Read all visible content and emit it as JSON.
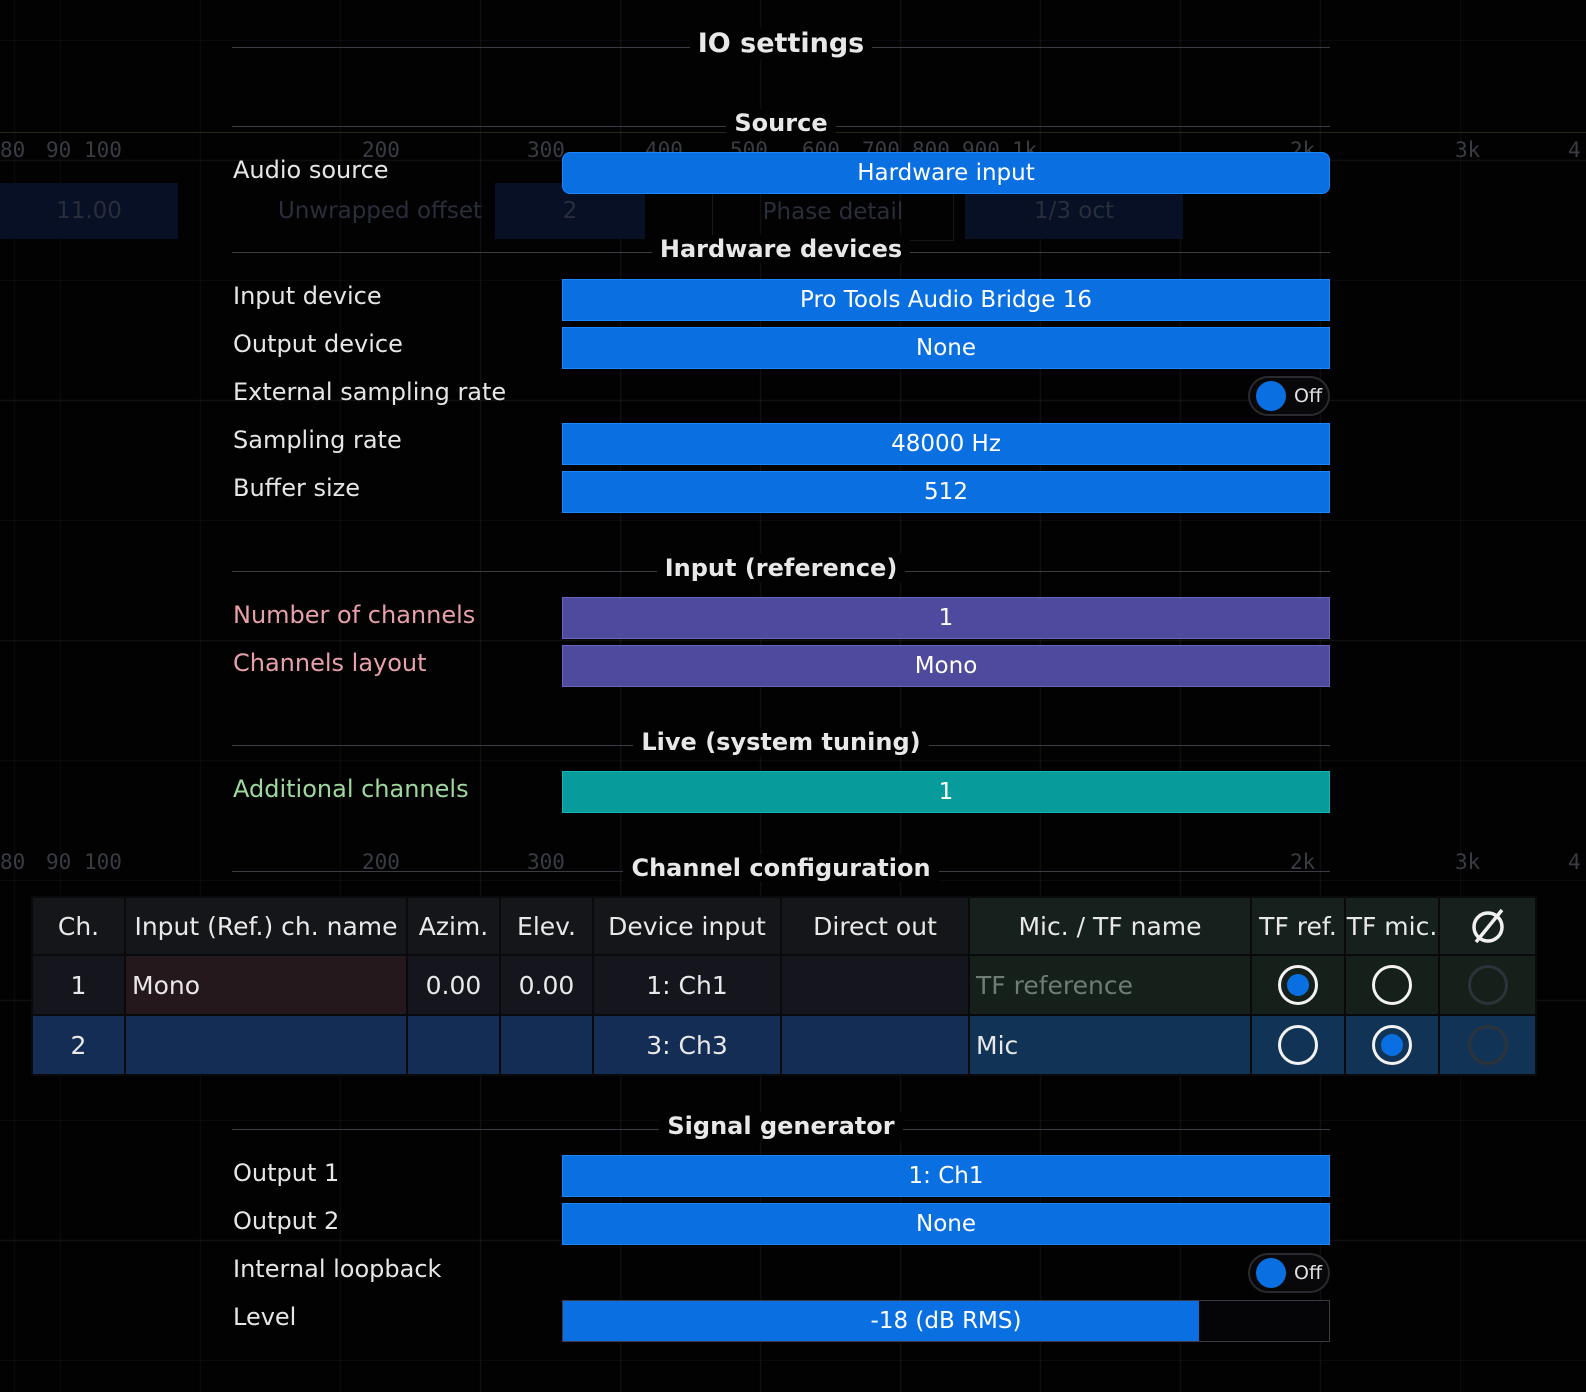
{
  "title": "IO settings",
  "background": {
    "axis_ticks": [
      "80",
      "90",
      "100",
      "200",
      "300",
      "400",
      "500",
      "600",
      "700",
      "800",
      "900",
      "1k",
      "2k",
      "3k",
      "4"
    ],
    "ghost_controls": [
      "11.00",
      "Unwrapped offset",
      "2",
      "Phase detail",
      "1/3 oct"
    ]
  },
  "sections": {
    "source": "Source",
    "hardware": "Hardware devices",
    "input_ref": "Input (reference)",
    "live": "Live (system tuning)",
    "channel_config": "Channel configuration",
    "signal_gen": "Signal generator"
  },
  "source": {
    "audio_source_label": "Audio source",
    "audio_source_value": "Hardware input"
  },
  "hardware": {
    "input_device_label": "Input device",
    "input_device_value": "Pro Tools Audio Bridge 16",
    "output_device_label": "Output device",
    "output_device_value": "None",
    "ext_rate_label": "External sampling rate",
    "ext_rate_toggle": "Off",
    "sampling_rate_label": "Sampling rate",
    "sampling_rate_value": "48000 Hz",
    "buffer_label": "Buffer size",
    "buffer_value": "512"
  },
  "input_ref": {
    "num_channels_label": "Number of channels",
    "num_channels_value": "1",
    "layout_label": "Channels layout",
    "layout_value": "Mono"
  },
  "live": {
    "additional_label": "Additional channels",
    "additional_value": "1"
  },
  "table": {
    "headers": [
      "Ch.",
      "Input (Ref.) ch. name",
      "Azim.",
      "Elev.",
      "Device input",
      "Direct out",
      "Mic. / TF name",
      "TF ref.",
      "TF mic."
    ],
    "rows": [
      {
        "ch": "1",
        "name": "Mono",
        "azim": "0.00",
        "elev": "0.00",
        "device_input": "1: Ch1",
        "direct_out": "",
        "mic_name": "TF reference",
        "tf_ref": true,
        "tf_mic": false
      },
      {
        "ch": "2",
        "name": "",
        "azim": "",
        "elev": "",
        "device_input": "3: Ch3",
        "direct_out": "",
        "mic_name": "Mic",
        "tf_ref": false,
        "tf_mic": true
      }
    ]
  },
  "signal_gen": {
    "output1_label": "Output 1",
    "output1_value": "1: Ch1",
    "output2_label": "Output 2",
    "output2_value": "None",
    "loopback_label": "Internal loopback",
    "loopback_toggle": "Off",
    "level_label": "Level",
    "level_value": "-18 (dB RMS)",
    "level_fraction": 0.83
  },
  "colors": {
    "accent": "#0a6fe0",
    "purple": "#4e4a9e",
    "teal": "#089b9b",
    "pink_label": "#e8a0a8",
    "green_label": "#9fd89f"
  }
}
